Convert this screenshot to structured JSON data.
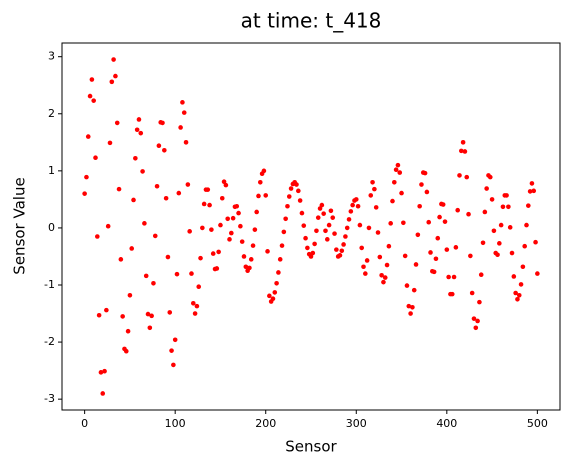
{
  "chart_data": {
    "type": "scatter",
    "title": "at time: t_418",
    "x_label": "Sensor",
    "y_label": "Sensor Value",
    "xlim": [
      -25,
      525
    ],
    "ylim": [
      -3.19,
      3.24
    ],
    "xticks": [
      0,
      100,
      200,
      300,
      400,
      500
    ],
    "yticks": [
      -3,
      -2,
      -1,
      0,
      1,
      2,
      3
    ],
    "series": [
      {
        "color": "#ff0000",
        "x": [
          0,
          2,
          4,
          6,
          8,
          10,
          12,
          14,
          16,
          18,
          20,
          22,
          24,
          26,
          28,
          30,
          32,
          34,
          36,
          38,
          40,
          42,
          44,
          46,
          48,
          50,
          52,
          54,
          56,
          58,
          60,
          62,
          64,
          66,
          68,
          70,
          72,
          74,
          76,
          78,
          80,
          82,
          84,
          86,
          88,
          90,
          92,
          94,
          96,
          98,
          100,
          102,
          104,
          106,
          108,
          110,
          112,
          114,
          116,
          118,
          120,
          122,
          124,
          126,
          128,
          130,
          132,
          134,
          136,
          138,
          140,
          142,
          144,
          146,
          148,
          150,
          152,
          154,
          156,
          158,
          160,
          162,
          164,
          166,
          168,
          170,
          172,
          174,
          176,
          178,
          180,
          182,
          184,
          186,
          188,
          190,
          192,
          194,
          196,
          198,
          200,
          202,
          204,
          206,
          208,
          210,
          212,
          214,
          216,
          218,
          220,
          222,
          224,
          226,
          228,
          230,
          232,
          234,
          236,
          238,
          240,
          242,
          244,
          246,
          248,
          250,
          252,
          254,
          256,
          258,
          260,
          262,
          264,
          266,
          268,
          270,
          272,
          274,
          276,
          278,
          280,
          282,
          284,
          286,
          288,
          290,
          292,
          294,
          296,
          298,
          300,
          302,
          304,
          306,
          308,
          310,
          312,
          314,
          316,
          318,
          320,
          322,
          324,
          326,
          328,
          330,
          332,
          334,
          336,
          338,
          340,
          342,
          344,
          346,
          348,
          350,
          352,
          354,
          356,
          358,
          360,
          362,
          364,
          366,
          368,
          370,
          372,
          374,
          376,
          378,
          380,
          382,
          384,
          386,
          388,
          390,
          392,
          394,
          396,
          398,
          400,
          402,
          404,
          406,
          408,
          410,
          412,
          414,
          416,
          418,
          420,
          422,
          424,
          426,
          428,
          430,
          432,
          434,
          436,
          438,
          440,
          442,
          444,
          446,
          448,
          450,
          452,
          454,
          456,
          458,
          460,
          462,
          464,
          466,
          468,
          470,
          472,
          474,
          476,
          478,
          480,
          482,
          484,
          486,
          488,
          490,
          492,
          494,
          496,
          498,
          500
        ],
        "values": [
          0.6,
          0.89,
          1.6,
          2.31,
          2.6,
          2.23,
          1.23,
          -0.15,
          -1.53,
          -2.53,
          -2.9,
          -2.51,
          -1.44,
          0.03,
          1.49,
          2.56,
          2.95,
          2.66,
          1.84,
          0.68,
          -0.55,
          -1.55,
          -2.12,
          -2.16,
          -1.81,
          -1.18,
          -0.36,
          0.49,
          1.22,
          1.72,
          1.9,
          1.66,
          0.99,
          0.08,
          -0.84,
          -1.51,
          -1.75,
          -1.54,
          -0.97,
          -0.14,
          0.73,
          1.44,
          1.85,
          1.84,
          1.36,
          0.52,
          -0.51,
          -1.48,
          -2.15,
          -2.4,
          -1.96,
          -0.81,
          0.61,
          1.76,
          2.2,
          2.02,
          1.5,
          0.76,
          -0.06,
          -0.8,
          -1.32,
          -1.5,
          -1.37,
          -1.03,
          -0.53,
          0.0,
          0.42,
          0.67,
          0.67,
          0.4,
          -0.03,
          -0.45,
          -0.72,
          -0.71,
          -0.42,
          0.05,
          0.52,
          0.81,
          0.75,
          0.16,
          -0.2,
          -0.09,
          0.17,
          0.37,
          0.38,
          0.26,
          0.03,
          -0.24,
          -0.5,
          -0.68,
          -0.75,
          -0.7,
          -0.55,
          -0.31,
          -0.03,
          0.28,
          0.56,
          0.8,
          0.95,
          1.0,
          0.57,
          -0.41,
          -1.19,
          -1.29,
          -1.24,
          -1.13,
          -0.97,
          -0.78,
          -0.55,
          -0.31,
          -0.07,
          0.16,
          0.38,
          0.55,
          0.69,
          0.77,
          0.8,
          0.76,
          0.65,
          0.48,
          0.26,
          0.04,
          -0.18,
          -0.35,
          -0.46,
          -0.5,
          -0.44,
          -0.28,
          -0.05,
          0.18,
          0.34,
          0.4,
          0.25,
          -0.05,
          -0.2,
          0.05,
          0.3,
          0.18,
          -0.1,
          -0.38,
          -0.5,
          -0.48,
          -0.4,
          -0.29,
          -0.15,
          0.0,
          0.15,
          0.29,
          0.4,
          0.48,
          0.5,
          0.38,
          0.05,
          -0.35,
          -0.68,
          -0.8,
          -0.57,
          0.0,
          0.57,
          0.8,
          0.68,
          0.36,
          -0.08,
          -0.51,
          -0.83,
          -0.95,
          -0.87,
          -0.65,
          -0.32,
          0.08,
          0.47,
          0.8,
          1.02,
          1.1,
          0.97,
          0.61,
          0.09,
          -0.49,
          -1.01,
          -1.37,
          -1.5,
          -1.39,
          -1.09,
          -0.64,
          -0.12,
          0.38,
          0.76,
          0.97,
          0.96,
          0.63,
          0.1,
          -0.43,
          -0.76,
          -0.77,
          -0.54,
          -0.18,
          0.19,
          0.42,
          0.41,
          0.11,
          -0.38,
          -0.86,
          -1.16,
          -1.16,
          -0.86,
          -0.34,
          0.31,
          0.92,
          1.35,
          1.5,
          1.34,
          0.89,
          0.24,
          -0.49,
          -1.14,
          -1.59,
          -1.75,
          -1.63,
          -1.3,
          -0.82,
          -0.26,
          0.28,
          0.69,
          0.92,
          0.89,
          0.5,
          -0.05,
          -0.44,
          -0.47,
          -0.27,
          0.05,
          0.37,
          0.57,
          0.57,
          0.37,
          0.01,
          -0.44,
          -0.85,
          -1.14,
          -1.25,
          -1.18,
          -0.99,
          -0.68,
          -0.32,
          0.05,
          0.39,
          0.64,
          0.78,
          0.65,
          -0.25,
          -0.8
        ]
      }
    ]
  }
}
